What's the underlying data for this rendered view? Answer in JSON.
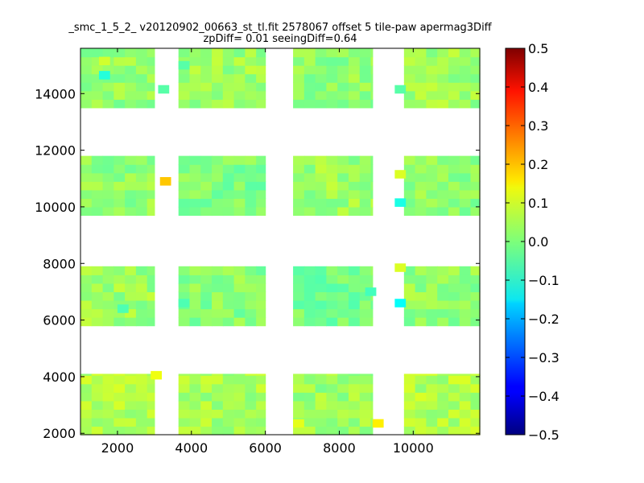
{
  "chart_data": {
    "type": "heatmap",
    "title_line1": "_smc_1_5_2_ v20120902_00663_st_tl.fit 2578067 offset 5 tile-paw apermag3Diff",
    "title_line2": "zpDiff= 0.01 seeingDiff=0.64",
    "xlim": [
      1000,
      11800
    ],
    "ylim": [
      1950,
      15600
    ],
    "xticks": [
      2000,
      4000,
      6000,
      8000,
      10000
    ],
    "yticks": [
      2000,
      4000,
      6000,
      8000,
      10000,
      12000,
      14000
    ],
    "colorbar": {
      "min": -0.5,
      "max": 0.5,
      "ticks": [
        "0.5",
        "0.4",
        "0.3",
        "0.2",
        "0.1",
        "0.0",
        "−0.1",
        "−0.2",
        "−0.3",
        "−0.4",
        "−0.5"
      ],
      "colormap": "jet"
    },
    "cell_size": [
      300,
      300
    ],
    "blocks": [
      {
        "x": [
          1000,
          3000
        ],
        "y": [
          13500,
          15600
        ],
        "base": 0.02
      },
      {
        "x": [
          3650,
          6000
        ],
        "y": [
          13500,
          15600
        ],
        "base": 0.03
      },
      {
        "x": [
          6750,
          8900
        ],
        "y": [
          13500,
          15600
        ],
        "base": 0.02
      },
      {
        "x": [
          9750,
          11800
        ],
        "y": [
          13500,
          15600
        ],
        "base": 0.03
      },
      {
        "x": [
          1000,
          3000
        ],
        "y": [
          9700,
          11800
        ],
        "base": 0.02
      },
      {
        "x": [
          3650,
          6000
        ],
        "y": [
          9700,
          11800
        ],
        "base": 0.0
      },
      {
        "x": [
          6750,
          8900
        ],
        "y": [
          9700,
          11800
        ],
        "base": 0.03
      },
      {
        "x": [
          9750,
          11800
        ],
        "y": [
          9700,
          11800
        ],
        "base": 0.02
      },
      {
        "x": [
          1000,
          3000
        ],
        "y": [
          5800,
          7900
        ],
        "base": 0.03
      },
      {
        "x": [
          3650,
          6000
        ],
        "y": [
          5800,
          7900
        ],
        "base": 0.01
      },
      {
        "x": [
          6750,
          8900
        ],
        "y": [
          5800,
          7900
        ],
        "base": -0.01
      },
      {
        "x": [
          9750,
          11800
        ],
        "y": [
          5800,
          7900
        ],
        "base": 0.02
      },
      {
        "x": [
          1000,
          3000
        ],
        "y": [
          1950,
          4100
        ],
        "base": 0.05
      },
      {
        "x": [
          3650,
          6000
        ],
        "y": [
          1950,
          4100
        ],
        "base": 0.04
      },
      {
        "x": [
          6750,
          8900
        ],
        "y": [
          1950,
          4100
        ],
        "base": 0.03
      },
      {
        "x": [
          9750,
          11800
        ],
        "y": [
          1950,
          4100
        ],
        "base": 0.05
      }
    ],
    "special_cells": [
      {
        "x": 3150,
        "y": 10750,
        "value": 0.18
      },
      {
        "x": 1500,
        "y": 14500,
        "value": -0.09
      },
      {
        "x": 1500,
        "y": 15000,
        "value": 0.08
      },
      {
        "x": 3650,
        "y": 14850,
        "value": -0.04
      },
      {
        "x": 3100,
        "y": 14000,
        "value": -0.04
      },
      {
        "x": 9500,
        "y": 14000,
        "value": -0.04
      },
      {
        "x": 9500,
        "y": 10000,
        "value": -0.1
      },
      {
        "x": 9500,
        "y": 11000,
        "value": 0.09
      },
      {
        "x": 9500,
        "y": 7700,
        "value": 0.09
      },
      {
        "x": 9500,
        "y": 6450,
        "value": -0.12
      },
      {
        "x": 3650,
        "y": 6450,
        "value": -0.05
      },
      {
        "x": 8700,
        "y": 6850,
        "value": -0.06
      },
      {
        "x": 2900,
        "y": 3900,
        "value": 0.11
      },
      {
        "x": 8900,
        "y": 2200,
        "value": 0.14
      },
      {
        "x": 6750,
        "y": 2200,
        "value": 0.1
      },
      {
        "x": 2000,
        "y": 6250,
        "value": -0.05
      }
    ]
  }
}
